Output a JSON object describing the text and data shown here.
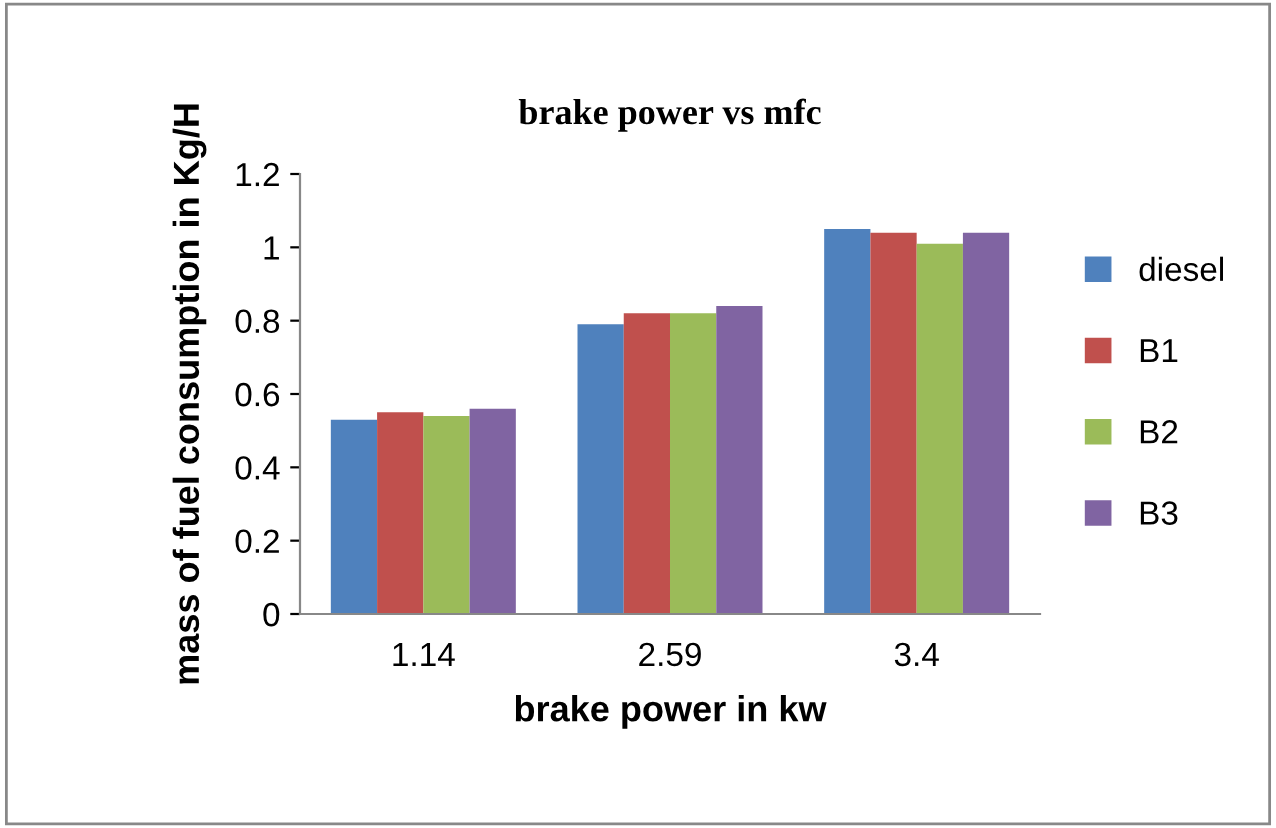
{
  "chart_data": {
    "type": "bar",
    "title": "brake power vs mfc",
    "xlabel": "brake power in kw",
    "ylabel": "mass of fuel consumption in Kg/H",
    "categories": [
      "1.14",
      "2.59",
      "3.4"
    ],
    "series": [
      {
        "name": "diesel",
        "color": "#4f81bd",
        "values": [
          0.53,
          0.79,
          1.05
        ]
      },
      {
        "name": "B1",
        "color": "#c0504d",
        "values": [
          0.55,
          0.82,
          1.04
        ]
      },
      {
        "name": "B2",
        "color": "#9bbb59",
        "values": [
          0.54,
          0.82,
          1.01
        ]
      },
      {
        "name": "B3",
        "color": "#8064a2",
        "values": [
          0.56,
          0.84,
          1.04
        ]
      }
    ],
    "ylim": [
      0,
      1.2
    ],
    "yticks": [
      0,
      0.2,
      0.4,
      0.6,
      0.8,
      1,
      1.2
    ],
    "grid": false,
    "legend": "right"
  }
}
